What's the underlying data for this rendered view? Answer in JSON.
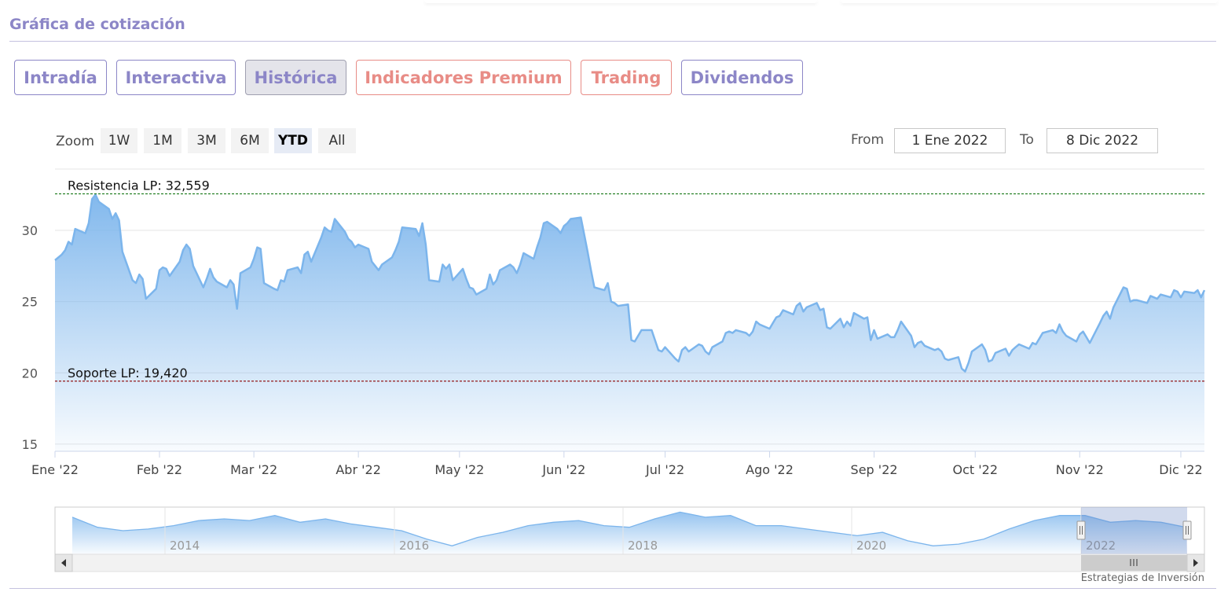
{
  "section": {
    "title": "Gráfica de cotización"
  },
  "tabs": [
    {
      "label": "Intradía",
      "variant": "normal"
    },
    {
      "label": "Interactiva",
      "variant": "normal"
    },
    {
      "label": "Histórica",
      "variant": "active"
    },
    {
      "label": "Indicadores Premium",
      "variant": "premium"
    },
    {
      "label": "Trading",
      "variant": "premium"
    },
    {
      "label": "Dividendos",
      "variant": "normal"
    }
  ],
  "zoom": {
    "label": "Zoom",
    "options": [
      "1W",
      "1M",
      "3M",
      "6M",
      "YTD",
      "All"
    ],
    "selected": "YTD"
  },
  "range": {
    "from_label": "From",
    "from_value": "1 Ene 2022",
    "to_label": "To",
    "to_value": "8 Dic 2022"
  },
  "colors": {
    "accent": "#8c86c7",
    "premium": "#e88c86",
    "series_line": "#7cb5ec",
    "resistance": "#1a7a1a",
    "support": "#8b0000"
  },
  "chart_data": {
    "type": "area",
    "title": "",
    "xlabel": "",
    "ylabel": "",
    "ylim": [
      14.5,
      34.3
    ],
    "yticks": [
      15,
      20,
      25,
      30
    ],
    "grid": true,
    "x_tick_labels": [
      "Ene '22",
      "Feb '22",
      "Mar '22",
      "Abr '22",
      "May '22",
      "Jun '22",
      "Jul '22",
      "Ago '22",
      "Sep '22",
      "Oct '22",
      "Nov '22",
      "Dic '22"
    ],
    "x_tick_dates": [
      "2022-01-01",
      "2022-02-01",
      "2022-03-01",
      "2022-04-01",
      "2022-05-01",
      "2022-06-01",
      "2022-07-01",
      "2022-08-01",
      "2022-09-01",
      "2022-10-01",
      "2022-11-01",
      "2022-12-01"
    ],
    "x": [
      "2022-01-01",
      "2022-01-03",
      "2022-01-04",
      "2022-01-05",
      "2022-01-06",
      "2022-01-07",
      "2022-01-10",
      "2022-01-11",
      "2022-01-12",
      "2022-01-13",
      "2022-01-14",
      "2022-01-17",
      "2022-01-18",
      "2022-01-19",
      "2022-01-20",
      "2022-01-21",
      "2022-01-24",
      "2022-01-25",
      "2022-01-26",
      "2022-01-27",
      "2022-01-28",
      "2022-01-31",
      "2022-02-01",
      "2022-02-02",
      "2022-02-03",
      "2022-02-04",
      "2022-02-07",
      "2022-02-08",
      "2022-02-09",
      "2022-02-10",
      "2022-02-11",
      "2022-02-14",
      "2022-02-15",
      "2022-02-16",
      "2022-02-17",
      "2022-02-18",
      "2022-02-21",
      "2022-02-22",
      "2022-02-23",
      "2022-02-24",
      "2022-02-25",
      "2022-02-28",
      "2022-03-01",
      "2022-03-02",
      "2022-03-03",
      "2022-03-04",
      "2022-03-07",
      "2022-03-08",
      "2022-03-09",
      "2022-03-10",
      "2022-03-11",
      "2022-03-14",
      "2022-03-15",
      "2022-03-16",
      "2022-03-17",
      "2022-03-18",
      "2022-03-21",
      "2022-03-22",
      "2022-03-23",
      "2022-03-24",
      "2022-03-25",
      "2022-03-28",
      "2022-03-29",
      "2022-03-30",
      "2022-03-31",
      "2022-04-01",
      "2022-04-04",
      "2022-04-05",
      "2022-04-06",
      "2022-04-07",
      "2022-04-08",
      "2022-04-11",
      "2022-04-12",
      "2022-04-13",
      "2022-04-14",
      "2022-04-18",
      "2022-04-19",
      "2022-04-20",
      "2022-04-21",
      "2022-04-22",
      "2022-04-25",
      "2022-04-26",
      "2022-04-27",
      "2022-04-28",
      "2022-04-29",
      "2022-05-02",
      "2022-05-03",
      "2022-05-04",
      "2022-05-05",
      "2022-05-06",
      "2022-05-09",
      "2022-05-10",
      "2022-05-11",
      "2022-05-12",
      "2022-05-13",
      "2022-05-16",
      "2022-05-17",
      "2022-05-18",
      "2022-05-19",
      "2022-05-20",
      "2022-05-23",
      "2022-05-24",
      "2022-05-25",
      "2022-05-26",
      "2022-05-27",
      "2022-05-30",
      "2022-05-31",
      "2022-06-01",
      "2022-06-02",
      "2022-06-03",
      "2022-06-06",
      "2022-06-07",
      "2022-06-08",
      "2022-06-09",
      "2022-06-10",
      "2022-06-13",
      "2022-06-14",
      "2022-06-15",
      "2022-06-16",
      "2022-06-17",
      "2022-06-20",
      "2022-06-21",
      "2022-06-22",
      "2022-06-23",
      "2022-06-24",
      "2022-06-27",
      "2022-06-28",
      "2022-06-29",
      "2022-06-30",
      "2022-07-01",
      "2022-07-04",
      "2022-07-05",
      "2022-07-06",
      "2022-07-07",
      "2022-07-08",
      "2022-07-11",
      "2022-07-12",
      "2022-07-13",
      "2022-07-14",
      "2022-07-15",
      "2022-07-18",
      "2022-07-19",
      "2022-07-20",
      "2022-07-21",
      "2022-07-22",
      "2022-07-25",
      "2022-07-26",
      "2022-07-27",
      "2022-07-28",
      "2022-07-29",
      "2022-08-01",
      "2022-08-02",
      "2022-08-03",
      "2022-08-04",
      "2022-08-05",
      "2022-08-08",
      "2022-08-09",
      "2022-08-10",
      "2022-08-11",
      "2022-08-12",
      "2022-08-15",
      "2022-08-16",
      "2022-08-17",
      "2022-08-18",
      "2022-08-19",
      "2022-08-22",
      "2022-08-23",
      "2022-08-24",
      "2022-08-25",
      "2022-08-26",
      "2022-08-29",
      "2022-08-30",
      "2022-08-31",
      "2022-09-01",
      "2022-09-02",
      "2022-09-05",
      "2022-09-06",
      "2022-09-07",
      "2022-09-08",
      "2022-09-09",
      "2022-09-12",
      "2022-09-13",
      "2022-09-14",
      "2022-09-15",
      "2022-09-16",
      "2022-09-19",
      "2022-09-20",
      "2022-09-21",
      "2022-09-22",
      "2022-09-23",
      "2022-09-26",
      "2022-09-27",
      "2022-09-28",
      "2022-09-29",
      "2022-09-30",
      "2022-10-03",
      "2022-10-04",
      "2022-10-05",
      "2022-10-06",
      "2022-10-07",
      "2022-10-10",
      "2022-10-11",
      "2022-10-12",
      "2022-10-13",
      "2022-10-14",
      "2022-10-17",
      "2022-10-18",
      "2022-10-19",
      "2022-10-20",
      "2022-10-21",
      "2022-10-24",
      "2022-10-25",
      "2022-10-26",
      "2022-10-27",
      "2022-10-28",
      "2022-10-31",
      "2022-11-01",
      "2022-11-02",
      "2022-11-03",
      "2022-11-04",
      "2022-11-07",
      "2022-11-08",
      "2022-11-09",
      "2022-11-10",
      "2022-11-11",
      "2022-11-14",
      "2022-11-15",
      "2022-11-16",
      "2022-11-17",
      "2022-11-18",
      "2022-11-21",
      "2022-11-22",
      "2022-11-23",
      "2022-11-24",
      "2022-11-25",
      "2022-11-28",
      "2022-11-29",
      "2022-11-30",
      "2022-12-01",
      "2022-12-02",
      "2022-12-05",
      "2022-12-06",
      "2022-12-07",
      "2022-12-08"
    ],
    "series": [
      {
        "values": [
          27.9,
          28.3,
          28.6,
          29.2,
          29.0,
          30.1,
          29.8,
          30.5,
          32.2,
          32.5,
          32.0,
          31.5,
          30.8,
          31.2,
          30.7,
          28.5,
          26.5,
          26.3,
          26.9,
          26.6,
          25.2,
          25.9,
          27.2,
          27.4,
          27.3,
          26.8,
          27.8,
          28.6,
          29.0,
          28.7,
          27.5,
          26.0,
          26.6,
          27.3,
          26.7,
          26.4,
          26.0,
          26.5,
          26.2,
          24.5,
          27.0,
          27.4,
          28.0,
          28.8,
          28.7,
          26.3,
          25.9,
          25.8,
          26.5,
          26.4,
          27.2,
          27.4,
          27.0,
          28.3,
          28.5,
          27.8,
          29.5,
          30.2,
          30.0,
          29.9,
          30.8,
          29.9,
          29.4,
          29.2,
          28.8,
          29.0,
          28.7,
          27.8,
          27.5,
          27.2,
          27.6,
          28.1,
          28.6,
          29.2,
          30.2,
          30.1,
          29.6,
          30.5,
          29.0,
          26.5,
          26.4,
          27.6,
          27.3,
          27.6,
          26.5,
          27.3,
          26.6,
          26.0,
          25.9,
          25.5,
          25.9,
          26.9,
          26.2,
          26.5,
          27.2,
          27.6,
          27.4,
          27.0,
          27.6,
          28.4,
          28.0,
          28.8,
          29.5,
          30.5,
          30.6,
          30.1,
          29.8,
          30.3,
          30.5,
          30.8,
          30.9,
          29.7,
          28.5,
          27.2,
          26.0,
          25.8,
          26.3,
          25.0,
          24.9,
          24.7,
          24.8,
          22.3,
          22.2,
          22.6,
          23.0,
          23.0,
          22.3,
          21.6,
          21.5,
          21.8,
          21.0,
          20.8,
          21.6,
          21.8,
          21.5,
          22.0,
          21.9,
          21.5,
          21.3,
          21.8,
          22.2,
          22.8,
          22.9,
          22.8,
          23.0,
          22.8,
          22.6,
          22.9,
          23.6,
          23.4,
          23.1,
          23.5,
          23.9,
          24.0,
          24.4,
          24.1,
          24.7,
          24.9,
          24.3,
          24.6,
          24.9,
          24.4,
          24.5,
          23.2,
          23.1,
          23.8,
          23.2,
          23.6,
          23.3,
          24.2,
          23.8,
          23.9,
          22.3,
          23.0,
          22.4,
          22.7,
          22.5,
          22.5,
          23.0,
          23.6,
          22.6,
          21.8,
          22.1,
          22.2,
          21.9,
          21.6,
          21.7,
          21.5,
          21.0,
          20.9,
          21.1,
          20.3,
          20.1,
          20.7,
          21.5,
          22.0,
          21.6,
          20.8,
          20.9,
          21.4,
          21.7,
          21.2,
          21.6,
          21.8,
          22.0,
          21.7,
          22.1,
          22.0,
          22.4,
          22.8,
          23.0,
          22.8,
          23.4,
          22.9,
          22.6,
          22.2,
          22.7,
          22.9,
          22.5,
          22.1,
          23.5,
          24.0,
          24.3,
          23.8,
          24.6,
          26.0,
          25.9,
          25.0,
          25.1,
          25.1,
          24.9,
          25.4,
          25.3,
          25.2,
          25.5,
          25.3,
          25.8,
          25.7,
          25.3,
          25.7,
          25.6,
          25.8,
          25.3,
          25.8
        ]
      }
    ],
    "annotations": [
      {
        "label": "Resistencia LP: 32,559",
        "value": 32.559
      },
      {
        "label": "Soporte LP: 19,420",
        "value": 19.42
      }
    ],
    "navigator": {
      "x_tick_labels": [
        "2014",
        "2016",
        "2018",
        "2020",
        "2022"
      ],
      "series": [
        32,
        26,
        24,
        25,
        27,
        30,
        31,
        30,
        33,
        29,
        31,
        28,
        26,
        24,
        19,
        15,
        20,
        23,
        27,
        29,
        30,
        27,
        26,
        31,
        35,
        32,
        33,
        27,
        27,
        25,
        23,
        21,
        23,
        18,
        15,
        16,
        19,
        25,
        30,
        33,
        33,
        29,
        30,
        29,
        26
      ]
    },
    "credit": "Estrategias de Inversión"
  }
}
